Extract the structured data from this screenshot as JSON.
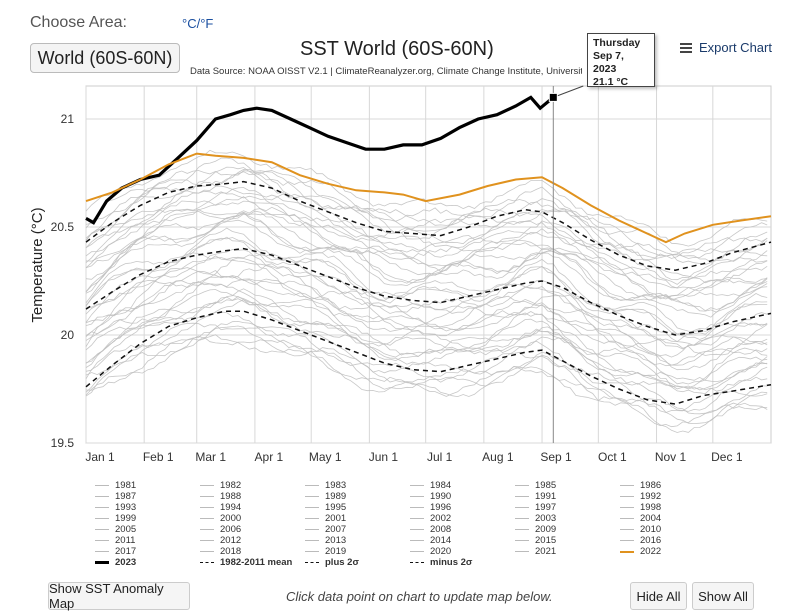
{
  "controls": {
    "choose_area_label": "Choose Area:",
    "unit_toggle": "°C/°F",
    "area_button": "World (60S-60N)",
    "export_label": "Export Chart",
    "show_map_button": "Show SST Anomaly Map",
    "hint": "Click data point on chart to update map below.",
    "hide_all_button": "Hide All",
    "show_all_button": "Show All"
  },
  "tooltip": {
    "day": "Thursday",
    "date": "Sep 7, 2023",
    "value": "21.1 °C"
  },
  "legend_items": [
    "1981",
    "1982",
    "1983",
    "1984",
    "1985",
    "1986",
    "1987",
    "1988",
    "1989",
    "1990",
    "1991",
    "1992",
    "1993",
    "1994",
    "1995",
    "1996",
    "1997",
    "1998",
    "1999",
    "2000",
    "2001",
    "2002",
    "2003",
    "2004",
    "2005",
    "2006",
    "2007",
    "2008",
    "2009",
    "2010",
    "2011",
    "2012",
    "2013",
    "2014",
    "2015",
    "2016",
    "2017",
    "2018",
    "2019",
    "2020",
    "2021",
    "2022",
    "2023",
    "1982-2011 mean",
    "plus 2σ",
    "minus 2σ"
  ],
  "colors": {
    "past_years": "#bdbdbd",
    "year_2022": "#e0921e",
    "year_2023": "#000000",
    "mean_and_sigma": "#111111",
    "grid": "#d8d8d8",
    "crosshair": "#888888"
  },
  "chart_data": {
    "type": "line",
    "title": "SST World (60S-60N)",
    "subtitle": "Data Source: NOAA OISST V2.1 | ClimateReanalyzer.org, Climate Change Institute, University of",
    "ylabel": "Temperature (°C)",
    "xlabel": "",
    "x": [
      "Jan 1",
      "Feb 1",
      "Mar 1",
      "Apr 1",
      "May 1",
      "Jun 1",
      "Jul 1",
      "Aug 1",
      "Sep 1",
      "Oct 1",
      "Nov 1",
      "Dec 1"
    ],
    "xtick_days": [
      1,
      32,
      60,
      91,
      121,
      152,
      182,
      213,
      244,
      274,
      305,
      335
    ],
    "y_ticks": [
      19.5,
      20,
      20.5,
      21
    ],
    "ylim": [
      19.5,
      21.15
    ],
    "xlim": [
      1,
      366
    ],
    "grid": true,
    "legend_position": "bottom",
    "highlight_point": {
      "day": 250,
      "value": 21.1,
      "label": "Sep 7, 2023"
    },
    "series": [
      {
        "name": "2023",
        "style": "bold",
        "points": [
          [
            1,
            20.54
          ],
          [
            5,
            20.52
          ],
          [
            12,
            20.62
          ],
          [
            20,
            20.68
          ],
          [
            30,
            20.72
          ],
          [
            40,
            20.74
          ],
          [
            50,
            20.82
          ],
          [
            60,
            20.9
          ],
          [
            70,
            21.0
          ],
          [
            78,
            21.02
          ],
          [
            85,
            21.04
          ],
          [
            92,
            21.05
          ],
          [
            100,
            21.04
          ],
          [
            110,
            21.0
          ],
          [
            120,
            20.96
          ],
          [
            130,
            20.92
          ],
          [
            140,
            20.89
          ],
          [
            150,
            20.86
          ],
          [
            160,
            20.86
          ],
          [
            170,
            20.88
          ],
          [
            180,
            20.88
          ],
          [
            190,
            20.91
          ],
          [
            200,
            20.96
          ],
          [
            210,
            21.0
          ],
          [
            220,
            21.02
          ],
          [
            230,
            21.06
          ],
          [
            238,
            21.1
          ],
          [
            243,
            21.05
          ],
          [
            250,
            21.1
          ]
        ]
      },
      {
        "name": "2022",
        "style": "orange",
        "points": [
          [
            1,
            20.62
          ],
          [
            15,
            20.66
          ],
          [
            30,
            20.72
          ],
          [
            45,
            20.79
          ],
          [
            60,
            20.84
          ],
          [
            70,
            20.83
          ],
          [
            85,
            20.82
          ],
          [
            100,
            20.8
          ],
          [
            115,
            20.74
          ],
          [
            130,
            20.7
          ],
          [
            145,
            20.67
          ],
          [
            160,
            20.66
          ],
          [
            170,
            20.65
          ],
          [
            182,
            20.62
          ],
          [
            200,
            20.65
          ],
          [
            215,
            20.69
          ],
          [
            230,
            20.72
          ],
          [
            244,
            20.73
          ],
          [
            255,
            20.68
          ],
          [
            270,
            20.6
          ],
          [
            285,
            20.53
          ],
          [
            300,
            20.47
          ],
          [
            310,
            20.43
          ],
          [
            320,
            20.47
          ],
          [
            335,
            20.51
          ],
          [
            350,
            20.53
          ],
          [
            366,
            20.55
          ]
        ]
      },
      {
        "name": "1982-2011 mean",
        "style": "dash",
        "points": [
          [
            1,
            20.12
          ],
          [
            15,
            20.2
          ],
          [
            30,
            20.28
          ],
          [
            45,
            20.34
          ],
          [
            60,
            20.37
          ],
          [
            75,
            20.39
          ],
          [
            85,
            20.4
          ],
          [
            100,
            20.37
          ],
          [
            115,
            20.32
          ],
          [
            130,
            20.27
          ],
          [
            145,
            20.22
          ],
          [
            160,
            20.18
          ],
          [
            175,
            20.16
          ],
          [
            190,
            20.15
          ],
          [
            205,
            20.18
          ],
          [
            220,
            20.21
          ],
          [
            235,
            20.24
          ],
          [
            244,
            20.25
          ],
          [
            255,
            20.22
          ],
          [
            270,
            20.15
          ],
          [
            285,
            20.09
          ],
          [
            300,
            20.04
          ],
          [
            315,
            20.0
          ],
          [
            330,
            20.02
          ],
          [
            345,
            20.06
          ],
          [
            366,
            20.1
          ]
        ]
      },
      {
        "name": "plus 2σ",
        "style": "dash",
        "points": [
          [
            1,
            20.43
          ],
          [
            15,
            20.52
          ],
          [
            30,
            20.6
          ],
          [
            45,
            20.66
          ],
          [
            60,
            20.69
          ],
          [
            75,
            20.7
          ],
          [
            85,
            20.71
          ],
          [
            100,
            20.68
          ],
          [
            115,
            20.62
          ],
          [
            130,
            20.57
          ],
          [
            145,
            20.52
          ],
          [
            160,
            20.48
          ],
          [
            175,
            20.47
          ],
          [
            190,
            20.46
          ],
          [
            205,
            20.5
          ],
          [
            220,
            20.55
          ],
          [
            235,
            20.58
          ],
          [
            244,
            20.57
          ],
          [
            255,
            20.52
          ],
          [
            270,
            20.44
          ],
          [
            285,
            20.37
          ],
          [
            300,
            20.32
          ],
          [
            315,
            20.3
          ],
          [
            330,
            20.33
          ],
          [
            345,
            20.38
          ],
          [
            366,
            20.43
          ]
        ]
      },
      {
        "name": "minus 2σ",
        "style": "dash",
        "points": [
          [
            1,
            19.76
          ],
          [
            15,
            19.86
          ],
          [
            30,
            19.96
          ],
          [
            45,
            20.04
          ],
          [
            60,
            20.08
          ],
          [
            75,
            20.11
          ],
          [
            85,
            20.11
          ],
          [
            100,
            20.07
          ],
          [
            115,
            20.02
          ],
          [
            130,
            19.97
          ],
          [
            145,
            19.92
          ],
          [
            160,
            19.87
          ],
          [
            175,
            19.84
          ],
          [
            190,
            19.83
          ],
          [
            205,
            19.86
          ],
          [
            220,
            19.89
          ],
          [
            235,
            19.92
          ],
          [
            244,
            19.93
          ],
          [
            255,
            19.88
          ],
          [
            270,
            19.81
          ],
          [
            285,
            19.75
          ],
          [
            300,
            19.7
          ],
          [
            315,
            19.68
          ],
          [
            330,
            19.72
          ],
          [
            345,
            19.74
          ],
          [
            366,
            19.77
          ]
        ]
      }
    ]
  }
}
